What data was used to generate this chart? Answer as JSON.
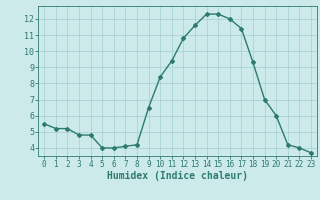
{
  "x": [
    0,
    1,
    2,
    3,
    4,
    5,
    6,
    7,
    8,
    9,
    10,
    11,
    12,
    13,
    14,
    15,
    16,
    17,
    18,
    19,
    20,
    21,
    22,
    23
  ],
  "y": [
    5.5,
    5.2,
    5.2,
    4.8,
    4.8,
    4.0,
    4.0,
    4.1,
    4.2,
    6.5,
    8.4,
    9.4,
    10.8,
    11.6,
    12.3,
    12.3,
    12.0,
    11.4,
    9.3,
    7.0,
    6.0,
    4.2,
    4.0,
    3.7
  ],
  "xlabel": "Humidex (Indice chaleur)",
  "line_color": "#2d7a6e",
  "marker": "D",
  "marker_size": 2.0,
  "line_width": 1.0,
  "bg_color": "#cceaea",
  "grid_color": "#aad4d4",
  "tick_color": "#2d7a6e",
  "label_color": "#2d7a6e",
  "ylim": [
    3.5,
    12.8
  ],
  "yticks": [
    4,
    5,
    6,
    7,
    8,
    9,
    10,
    11,
    12
  ],
  "xticks": [
    0,
    1,
    2,
    3,
    4,
    5,
    6,
    7,
    8,
    9,
    10,
    11,
    12,
    13,
    14,
    15,
    16,
    17,
    18,
    19,
    20,
    21,
    22,
    23
  ]
}
